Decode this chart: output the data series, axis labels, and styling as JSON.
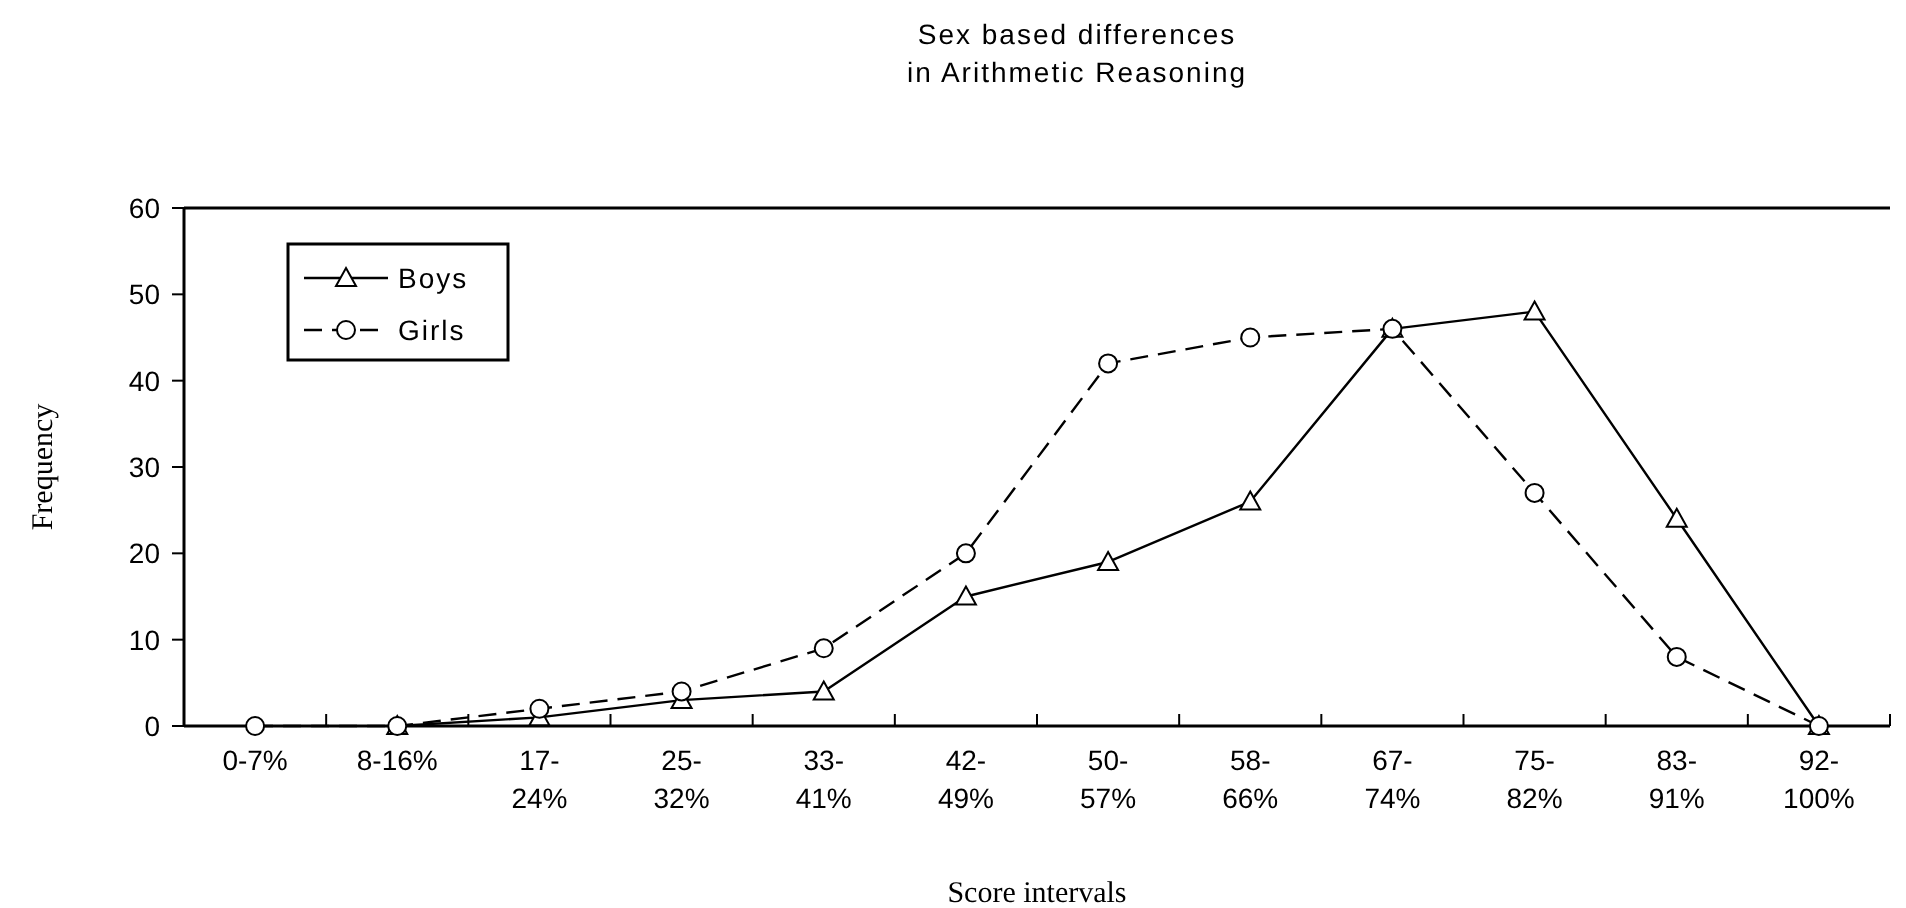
{
  "chart_data": {
    "type": "line",
    "title": "Sex based differences\nin Arithmetic Reasoning",
    "xlabel": "Score intervals",
    "ylabel": "Frequency",
    "categories": [
      "0-7%",
      "8-16%",
      "17-\n24%",
      "25-\n32%",
      "33-\n41%",
      "42-\n49%",
      "50-\n57%",
      "58-\n66%",
      "67-\n74%",
      "75-\n82%",
      "83-\n91%",
      "92-\n100%"
    ],
    "series": [
      {
        "name": "Boys",
        "color": "#000000",
        "marker": "triangle",
        "line_style": "solid",
        "values": [
          null,
          0,
          1,
          3,
          4,
          15,
          19,
          26,
          46,
          48,
          24,
          0
        ]
      },
      {
        "name": "Girls",
        "color": "#000000",
        "marker": "circle",
        "line_style": "dashed",
        "values": [
          0,
          0,
          2,
          4,
          9,
          20,
          42,
          45,
          46,
          27,
          8,
          0
        ]
      }
    ],
    "ylim": [
      0,
      60
    ],
    "yticks": [
      0,
      10,
      20,
      30,
      40,
      50,
      60
    ],
    "grid": false,
    "legend": "top left"
  }
}
